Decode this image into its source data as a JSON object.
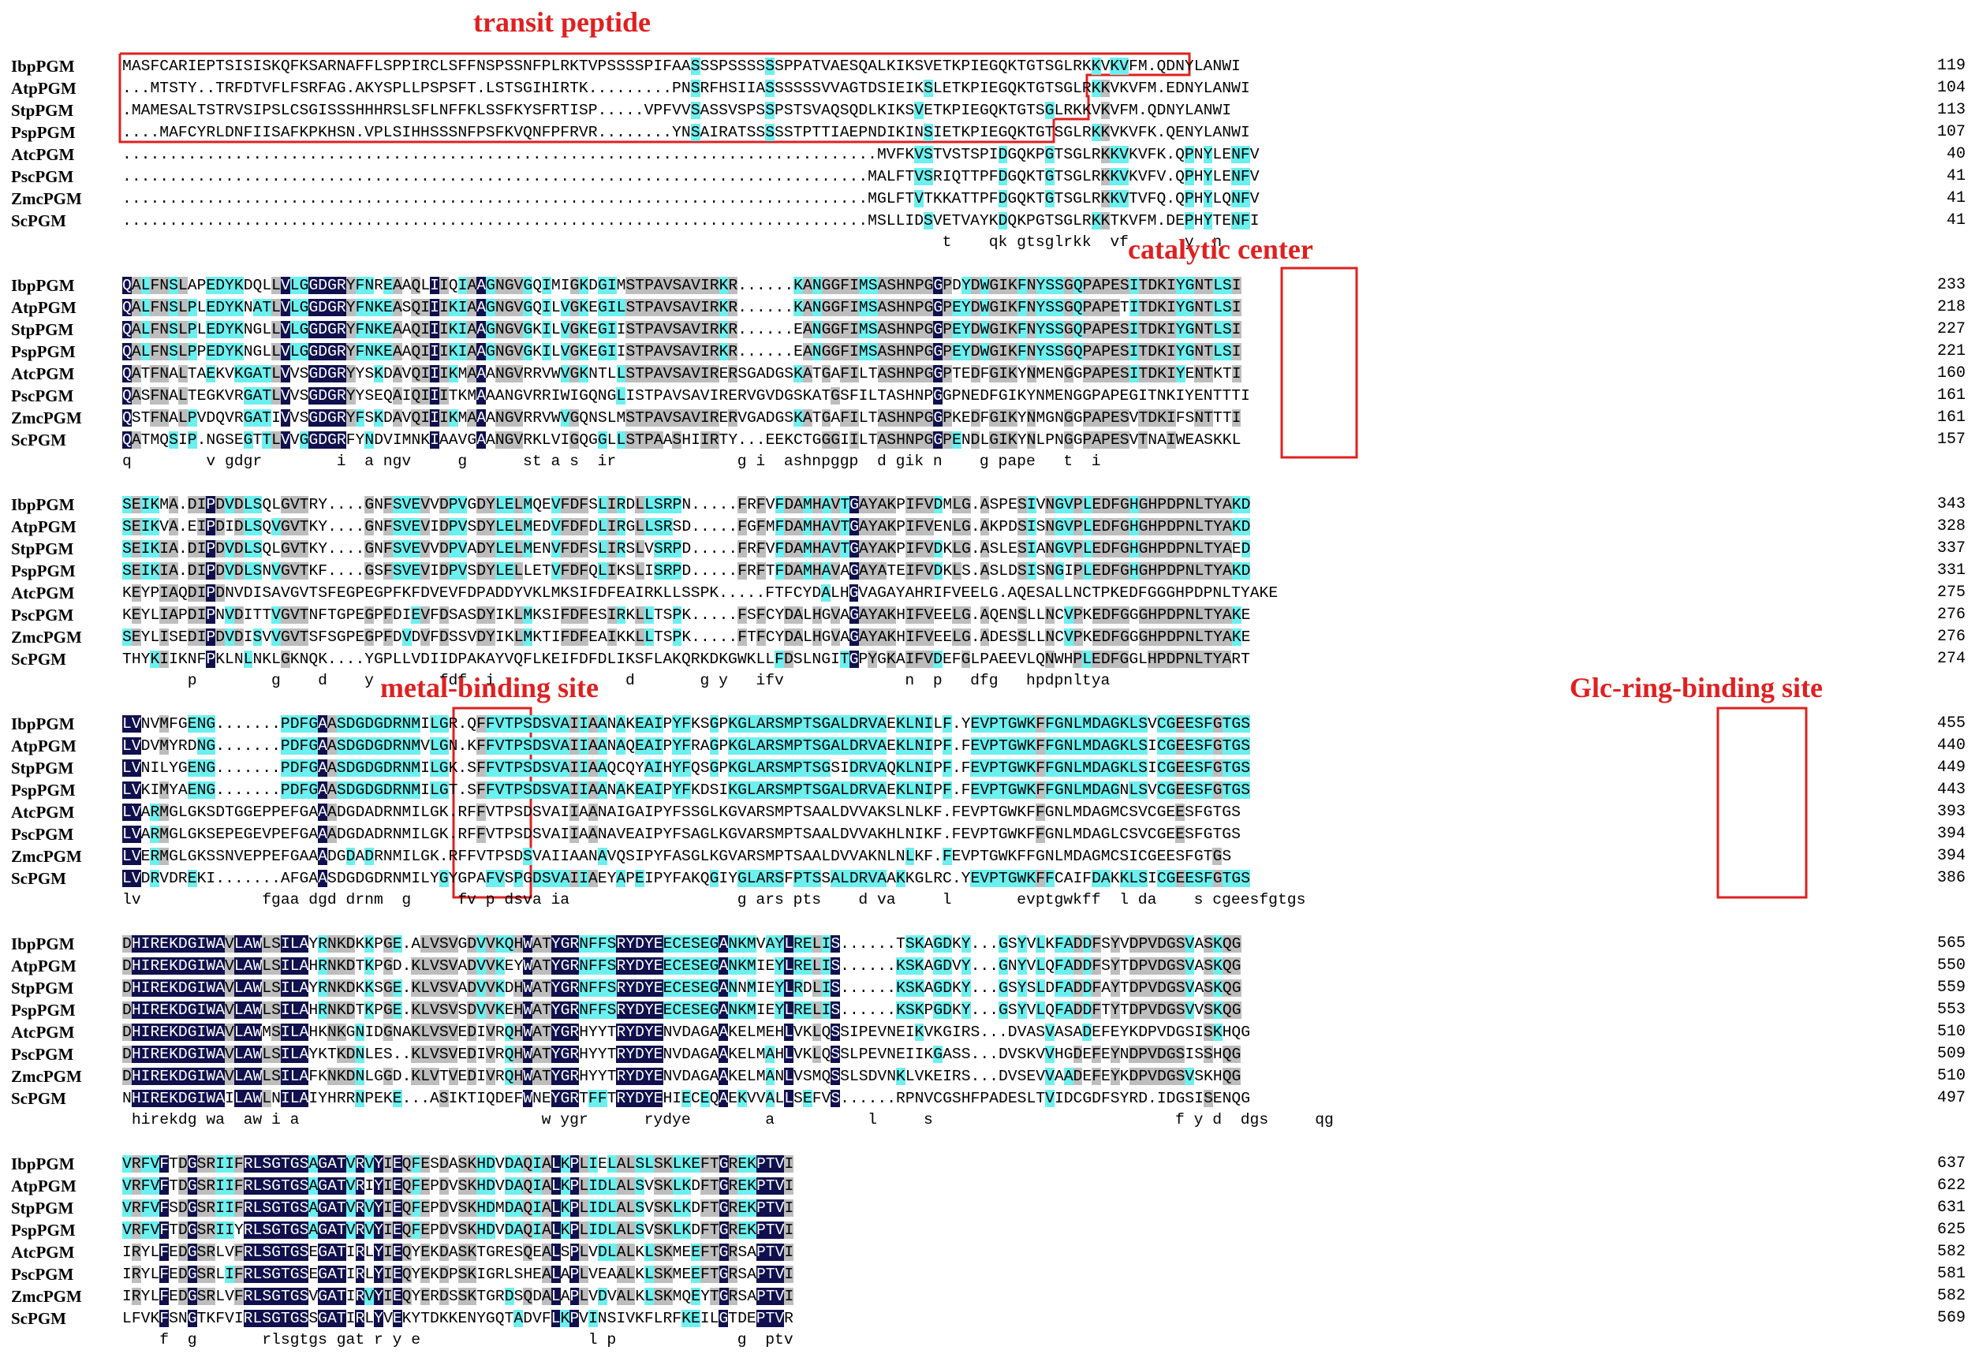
{
  "figure": {
    "species": [
      "IbpPGM",
      "AtpPGM",
      "StpPGM",
      "PspPGM",
      "AtcPGM",
      "PscPGM",
      "ZmcPGM",
      "ScPGM"
    ],
    "annotations": {
      "transit_peptide": "transit peptide",
      "catalytic_center": "catalytic center",
      "metal_binding_site": "metal-binding site",
      "glc_ring_binding_site": "Glc-ring-binding site"
    },
    "colors": {
      "identical": "#10104e",
      "similar": "#bdbdbd",
      "partial": "#6bf0ef",
      "annotation": "#e02020"
    },
    "blocks": [
      {
        "rows": [
          "MASFCARIEPTSISISKQFKSARNAFFLSPPIRCLSFFNSPSSNFPLRKTVPSSSSPIFAASSSPSSSSSSPPATVAESQALKIKSVETKPIEGQKTGTSGLRKKVKVFM.QDNYLANWI",
          "...MTSTY..TRFDTVFLFSRFAG.AKYSPLLPSPSFT.LSTSGIHIRTK.........PNSRFHSIIASSSSSSVVAGTDSIEIKSLETKPIEGQKTGTSGLRKKVKVFM.EDNYLANWI",
          ".MAMESALTSTRVSIPSLCSGISSSHHHRSLSFLNFFKLSSFKYSFRTISP.....VPFVVSASSVSPSSPSTSVAQSQDLKIKSVETKPIEGQKTGTSGLRKKVKVFM.QDNYLANWI",
          "....MAFCYRLDNFIISAFKPKHSN.VPLSIHHSSSNFPSFKVQNFPFRVR........YNSAIRATSSSSSTPTTIAEPNDIKINSIETKPIEGQKTGTSGLRKKVKVFK.QENYLANWI",
          ".................................................................................MVFKVSTVSTSPIDGQKPGTSGLRKKVKVFK.QPNYLENFV",
          "................................................................................MALFTVSRIQTTPFDGQKTGTSGLRKKVKVFV.QPHYLENFV",
          "................................................................................MGLFTVTKKATTPFDGQKTGTSGLRKKVTVFQ.QPHYLQNFV",
          "................................................................................MSLLIDSVETVAYKDQKPGTSGLRKKTKVFM.DEPHYTENFI"
        ],
        "nums": [
          "119",
          "104",
          "113",
          "107",
          "40",
          "41",
          "41",
          "41"
        ],
        "consensus": "                                                                                        t    qk gtsglrkk  vf      y  n  "
      },
      {
        "rows": [
          "QALFNSLAPEDYKDQLLVLGGDGRYFNREAAQLIIQIAAGNGVGQIMIGKDGIMSTPAVSAVIRKR......KANGGFIMSASHNPGGPDYDWGIKFNYSSGQPAPESITDKIYGNTLSI",
          "QALFNSLPLEDYKNATLVLGGDGRYFNKEASQIIIKIAAGNGVGQILVGKEGILSTPAVSAVIRKR......KANGGFIMSASHNPGGPEYDWGIKFNYSSGQPAPETITDKIYGNTLSI",
          "QALFNSLPLEDYKNGLLVLGGDGRYFNKEAAQIIIKIAAGNGVGKILVGKEGIISTPAVSAVIRKR......EANGGFIMSASHNPGGPEYDWGIKFNYSSGQPAPESITDKIYGNTLSI",
          "QALFNSLPPEDYKNGLLVLGGDGRYFNKEAAQIIIKIAAGNGVGKILVGKEGIISTPAVSAVIRKR......EANGGFIMSASHNPGGPEYDWGIKFNYSSGQPAPESITDKIYGNTLSI",
          "QATFNALTAEKVKGATLVVSGDGRYYSKDAVQIIIKMAAANGVRRVWVGKNTLLSTPAVSAVIRERSGADGSKATGAFILTASHNPGGPTEDFGIKYNMENGGPAPESITDKIYENTKTI",
          "QASFNALTEGKVRGATLVVSGDGRYYSEQAIQIIITKMAAANGVRRIWIGQNGLISTPAVSAVIRERVGVDGSKATGSFILTASHNPGGPNEDFGIKYNMENGGPAPEGITNKIYENTTTI",
          "QSTFNALPVDQVRGATIVVSGDGRYFSKDAVQIIIKMAAANGVRRVWVGQNSLMSTPAVSAVIRERVGADGSKATGAFILTASHNPGGPKEDFGIKYNMGNGGPAPESVTDKIFSNTTTI",
          "QATMQSIP.NGSEGTTLVVGGDGRFYNDVIMNKIAAVGAANGVRKLVIGQGGLLSTPAASHIIRTY...EEKCTGGGIILTASHNPGGPENDLGIKYNLPNGGPAPESVTNAIWEASKKL"
        ],
        "nums": [
          "233",
          "218",
          "227",
          "221",
          "160",
          "161",
          "161",
          "157"
        ],
        "consensus": "q        v gdgr        i  a ngv     g      st a s  ir             g i  ashnpggp  d gik n    g pape   t  i"
      },
      {
        "rows": [
          "SEIKMA.DIPDVDLSQLGVTRY....GNFSVEVVDPVGDYLELMQEVFDFSLIRDLLSRPN.....FRFVFDAMHAVTGAYAKPIFVDMLG.ASPESIVNGVPLEDFGHGHPDPNLTYAKD",
          "SEIKVA.EIPDIDLSQVGVTKY....GNFSVEVIDPVSDYLELMEDVFDFDLIRGLLSRSD.....FGFMFDAMHAVTGAYAKPIFVENLG.AKPDSISNGVPLEDFGHGHPDPNLTYAKD",
          "SEIKIA.DIPDVDLSQLGVTKY....GNFSVEVVDPVADYLELMENVFDFSLIRSLVSRPD.....FRFVFDAMHAVTGAYAKPIFVDKLG.ASLESIANGVPLEDFGHGHPDPNLTYAED",
          "SEIKIA.DIPDVDLSNVGVTKF....GSFSVEVIDPVSDYLELLETVFDFQLIKSLISRPD.....FRFTFDAMHAVAGAYATEIFVDKLS.ASLDSISNGIPLEDFGHGHPDPNLTYAKD",
          "KEYPIAQDIPDNVDISAVGVTSFEGPEGPFKFDVEVFDPADDYVKLMKSIFDFEAIRKLLSSPK.....FTFCYDALHGVAGAYAHRIFVEELG.AQESALLNCTPKEDFGGGHPDPNLTYAKE",
          "KEYLIAPDIPNVDITTVGVTNFTGPEGPFDIEVFDSASDYIKLMKSIFDFESIRKLLTSPK.....FSFCYDALHGVAGAYAKHIFVEELG.AQENSLLNCVPKEDFGGGHPDPNLTYAKE",
          "SEYLISEDIPDVDISVVGVTSFSGPEGPFDVDVFDSSVDYIKLMKTIFDFEAIKKLLTSPK.....FTFCYDALHGVAGAYAKHIFVEELG.ADESSLLNCVPKEDFGGGHPDPNLTYAKE",
          "THYKIIKNFPKLNLNKLGKNQK....YGPLLVDIIDPAKAYVQFLKEIFDFDLIKSFLAKQRKDKGWKLLFDSLNGITGPYGKAIFVDEFGLPAEEVLQNWHPLEDFGGLHPDPNLTYART"
        ],
        "nums": [
          "343",
          "328",
          "337",
          "331",
          "275",
          "276",
          "276",
          "274"
        ],
        "consensus": "       p        g    d    y       fdf  i              d       g y   ifv             n  p   dfg   hpdpnltya"
      },
      {
        "rows": [
          "LVNVMFGENG.......PDFGAASDGDGDRNMILGR.QFFVTPSDSVAIIAANAKEAIPYFKSGPKGLARSMPTSGALDRVAEKLNILF.YEVPTGWKFFGNLMDAGKLSVCGEESFGTGS",
          "LVDVMYRDNG.......PDFGAASDGDGDRNMVLGN.KFFVTPSDSVAIIAANAQEAIPYFRAGPKGLARSMPTSGALDRVAEKLNIPF.FEVPTGWKFFGNLMDAGKLSICGEESFGTGS",
          "LVNILYGENG.......PDFGAASDGDGDRNMILGK.SFFVTPSDSVAIIAAQCQYAIHYFQSGPKGLARSMPTSGSIDRVAQKLNIPF.FEVPTGWKFFGNLMDAGKLSICGEESFGTGS",
          "LVKIMYAENG.......PDFGAASDGDGDRNMILGT.SFFVTPSDSVAIIAANAKEAIPYFKDSIKGLARSMPTSGALDRVAEKLNIPF.FEVPTGWKFFGNLMDAGNLSVCGEESFGTGS",
          "LVARMGLGKSDTGGEPPEFGAAADGDADRNMILGK.RFFVTPSDSVAIIAANAIGAIPYFSSGLKGVARSMPTSAALDVVAKSLNLKF.FEVPTGWKFFGNLMDAGMCSVCGEESFGTGS",
          "LVARMGLGKSEPEGEVPEFGAAADGDADRNMILGK.RFFVTPSDSVAIIAANAVEAIPYFSAGLKGVARSMPTSAALDVVAKHLNIKF.FEVPTGWKFFGNLMDAGLCSVCGEESFGTGS",
          "LVERMGLGKSSNVEPPEFGAAADGDADRNMILGK.RFFVTPSDSVAIIAANAVQSIPYFASGLKGVARSMPTSAALDVVAKNLNLKF.FEVPTGWKFFGNLMDAGMCSICGEESFGTGS",
          "LVDRVDREKI.......AFGAASDGDGDRNMILYGYGPAFVSPGDSVAIIAEYAPEIPYFAKQGIYGLARSFPTSSALDRVAAKKGLRC.YEVPTGWKFFCAIFDAKKLSICGEESFGTGS"
        ],
        "nums": [
          "455",
          "440",
          "449",
          "443",
          "393",
          "394",
          "394",
          "386"
        ],
        "consensus": "lv             fgaa dgd drnm  g     fv p dsva ia                  g ars pts    d va     l       evptgwkff  l da    s cgeesfgtgs"
      },
      {
        "rows": [
          "DHIREKDGIWAVLAWLSILAYRNKDKKPGE.ALVSVGDVVKQHWATYGRNFFSRYDYEECESEGANKMVAYLRELIS......TSKAGDKY...GSYVLKFADDFSYVDPVDGSVASKQG",
          "DHIREKDGIWAVLAWLSILAHRNKDTKPGD.KLVSVADVVKEYWATYGRNFFSRYDYEECESEGANKMIEYLRELIS......KSKAGDVY...GNYVLQFADDFSYTDPVDGSVASKQG",
          "DHIREKDGIWAVLAWLSILAYRNKDKKSGE.KLVSVADVVKDHWATYGRNFFSRYDYEECESEGANNMIEYLRDLIS......KSKAGDKY...GSYSLDFADDFAYTDPVDGSVASKQG",
          "DHIREKDGIWAVLAWLSILAHRNKDTKPGE.KLVSVSDVVKEHWATYGRNFFSRYDYEECESEGANKMIEYLRELIS......KSKPGDKY...GSYVLQFADDFTYTDPVDGSVVSKQG",
          "DHIREKDGIWAVLAWMSILAHKNKGNIDGNAKLVSVEDIVRQHWATYGRHYYTRYDYENVDAGAAKELMEHLVKLQSSIPEVNEIKVKGIRS...DVASVASADEFEYKDPVDGSISKHQG",
          "DHIREKDGIWAVLAWLSILAYKTKDNLES..KLVSVEDIVRQHWATYGRHYYTRYDYENVDAGAAKELMAHLVKLQSSLPEVNEIIKGASS...DVSKVVHGDEFEYNDPVDGSISSHQG",
          "DHIREKDGIWAVLAWLSILAFKNKDNLGGD.KLVTVEDIVRQHWATYGRHYYTRYDYENVDAGAAKELMANLVSMQSSLSDVNKLVKEIRS...DVSEVVAADEFEYKDPVDGSVSKHQG",
          "NHIREKDGIWAILAWLNILAIYHRRNPEKE...ASIKTIQDEFWNEYGRTFFTRYDYEHIECEQAEKVVALLSEFVS......RPNVCGSHFPADESLTVIDCGDFSYRD.IDGSISENQG"
        ],
        "nums": [
          "565",
          "550",
          "559",
          "553",
          "510",
          "509",
          "510",
          "497"
        ],
        "consensus": " hirekdg wa  aw i a                          w ygr      rydye        a          l     s                          f y d  dgs     qg"
      },
      {
        "rows": [
          "VRFVFTDGSRIIFRLSGTGSAGATVRVYIEQFESDASKHDVDAQIALKPLIELALSLSKLKEFTGREKPTVI",
          "VRFVFTDGSRIIFRLSGTGSAGATVRIYIEQFEPDVSKHDVDAQIALKPLIDLALSVSKLKDFTGREKPTVI",
          "VRFVFSDGSRIIFRLSGTGSAGATVRVYIEQFEPDVSKHDMDAQIALKPLIDLALSVSKLKDFTGREKPTVI",
          "VRFVFTDGSRIIYRLSGTGSAGATVRVYIEQFEPDVSKHDVDAQIALKPLIDLALSVSKLKDFTGREKPTVI",
          "IRYLFEDGSRLVFRLSGTGSEGATIRLYIEQYEKDASKTGRESQEALSPLVDLALKLSKMEEFTGRSAPTVI",
          "IRYLFEDGSRLIFRLSGTGSEGATIRLYIEQYEKDPSKIGRLSHEALAPLVEAALKLSKMEEFTGRSAPTVI",
          "IRYLFEDGSRLVFRLSGTGSVGATIRVYIEQYERDSSKTGRDSQDALAPLVDVALKLSKMQEYTGRSAPTVI",
          "LFVKFSNGTKFVIRLSGTGSSGATIRLYVEKYTDKKENYGQTADVFLKPVINSIVKFLRFKEILGTDEPTVR"
        ],
        "nums": [
          "637",
          "622",
          "631",
          "625",
          "582",
          "581",
          "582",
          "569"
        ],
        "consensus": "    f  g       rlsgtgs gat r y e                  l p             g  ptv"
      }
    ]
  }
}
